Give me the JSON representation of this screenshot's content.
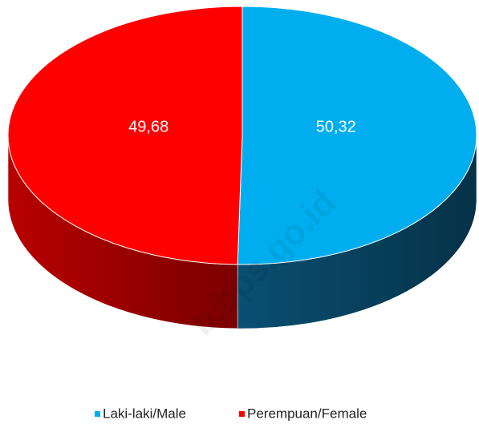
{
  "chart_data": {
    "type": "pie",
    "categories": [
      "Laki-laki/Male",
      "Perempuan/Female"
    ],
    "values": [
      50.32,
      49.68
    ],
    "value_labels": [
      "50,32",
      "49,68"
    ],
    "colors": [
      "#00aeef",
      "#ff0000"
    ],
    "legend": "bottom",
    "watermark": "b.bps.go.id"
  }
}
